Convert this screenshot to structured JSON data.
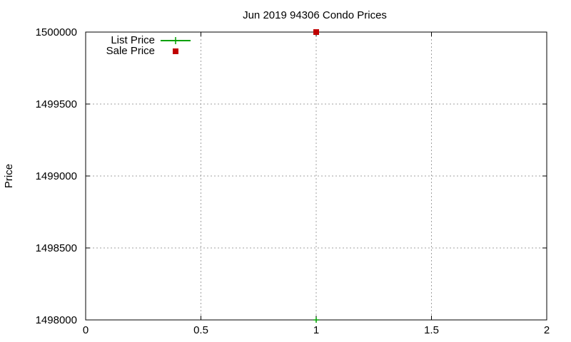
{
  "chart_data": {
    "type": "scatter",
    "title": "Jun 2019 94306 Condo Prices",
    "xlabel": "",
    "ylabel": "Price",
    "xlim": [
      0,
      2
    ],
    "ylim": [
      1498000,
      1500000
    ],
    "xticks": [
      0,
      0.5,
      1,
      1.5,
      2
    ],
    "yticks": [
      1498000,
      1498500,
      1499000,
      1499500,
      1500000
    ],
    "xtick_labels": [
      "0",
      "0.5",
      "1",
      "1.5",
      "2"
    ],
    "ytick_labels": [
      "1498000",
      "1498500",
      "1499000",
      "1499500",
      "1500000"
    ],
    "grid": true,
    "legend_position": "top-left",
    "series": [
      {
        "name": "List Price",
        "marker": "plus-with-line",
        "color": "#00a000",
        "points": [
          {
            "x": 1,
            "y": 1498000
          }
        ]
      },
      {
        "name": "Sale Price",
        "marker": "square",
        "color": "#c00000",
        "points": [
          {
            "x": 1,
            "y": 1500000
          }
        ]
      }
    ]
  }
}
